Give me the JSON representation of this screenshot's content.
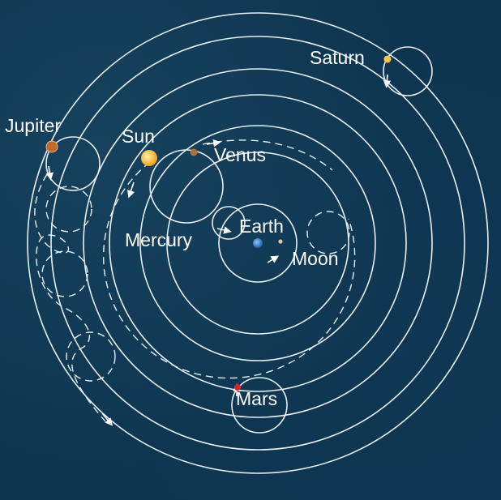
{
  "labels": {
    "saturn": "Saturn",
    "jupiter": "Jupiter",
    "sun": "Sun",
    "venus": "Venus",
    "earth": "Earth",
    "mercury": "Mercury",
    "moon": "Moon",
    "mars": "Mars"
  },
  "colors": {
    "background": "#0d3550",
    "orbit_line": "#e8eef2",
    "text": "#ffffff",
    "sun": "#f6b72a",
    "earth": "#2f7fc8",
    "saturn": "#f2c84a",
    "jupiter": "#c06a30",
    "venus": "#a8743e",
    "mars": "#d8262a",
    "moon": "#d9c9a0"
  }
}
